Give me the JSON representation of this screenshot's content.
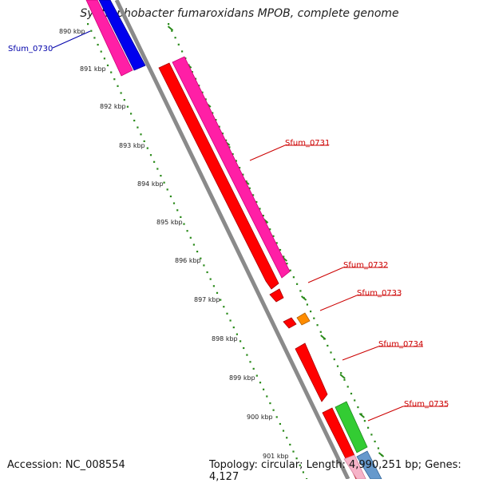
{
  "title": "Syntrophobacter fumaroxidans MPOB, complete genome",
  "footer": {
    "accession": "Accession: NC_008554",
    "topology": "Topology: circular; Length: 4,990,251 bp; Genes: 4,127"
  },
  "colors": {
    "backbone": "#8a8a8a",
    "tick_dots": "#2a8a1a",
    "label_red": "#cc0000",
    "label_blue": "#0000aa",
    "gene_red": "#ff0000",
    "gene_pink": "#ff1fa6",
    "gene_blue": "#0000ee",
    "gene_orange": "#ff8c00",
    "gene_green": "#33cc33",
    "gene_steel": "#6699cc"
  },
  "kbp_labels": [
    "890 kbp",
    "891 kbp",
    "892 kbp",
    "893 kbp",
    "894 kbp",
    "895 kbp",
    "896 kbp",
    "897 kbp",
    "898 kbp",
    "899 kbp",
    "900 kbp",
    "901 kbp"
  ],
  "gene_labels": [
    {
      "name": "Sfum_0730",
      "color": "blue"
    },
    {
      "name": "Sfum_0731",
      "color": "red"
    },
    {
      "name": "Sfum_0732",
      "color": "red"
    },
    {
      "name": "Sfum_0733",
      "color": "red"
    },
    {
      "name": "Sfum_0734",
      "color": "red"
    },
    {
      "name": "Sfum_0735",
      "color": "red"
    }
  ]
}
